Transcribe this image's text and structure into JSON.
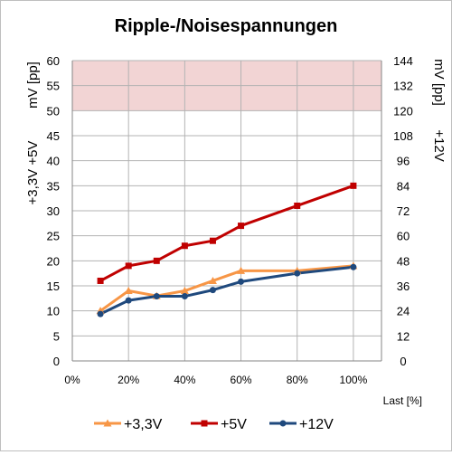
{
  "chart_data": {
    "type": "line",
    "title": "Ripple-/Noisespannungen",
    "xlabel": "Last [%]",
    "ylabel_left_line1": "mV [pp]",
    "ylabel_left_line2": "+3,3V +5V",
    "ylabel_right_line1": "mV [pp]",
    "ylabel_right_line2": "+12V",
    "x_ticks": [
      "0%",
      "20%",
      "40%",
      "60%",
      "80%",
      "100%"
    ],
    "x_tick_values": [
      0,
      20,
      40,
      60,
      80,
      100
    ],
    "xlim": [
      0,
      110
    ],
    "ylim_left": [
      0,
      60
    ],
    "yticks_left": [
      "0",
      "5",
      "10",
      "15",
      "20",
      "25",
      "30",
      "35",
      "40",
      "45",
      "50",
      "55",
      "60"
    ],
    "ylim_right": [
      0,
      144
    ],
    "yticks_right": [
      "0",
      "12",
      "24",
      "36",
      "48",
      "60",
      "72",
      "84",
      "96",
      "108",
      "120",
      "132",
      "144"
    ],
    "limit_band_left": [
      50,
      60
    ],
    "grid": true,
    "legend_position": "bottom",
    "x": [
      10,
      20,
      30,
      40,
      50,
      60,
      80,
      100
    ],
    "series": [
      {
        "name": "+3,3V",
        "axis": "left",
        "color": "#f79646",
        "marker": "triangle",
        "values": [
          10,
          14,
          13,
          14,
          16,
          18,
          18,
          19
        ]
      },
      {
        "name": "+5V",
        "axis": "left",
        "color": "#c00000",
        "marker": "square",
        "values": [
          16,
          19,
          20,
          23,
          24,
          27,
          31,
          35
        ]
      },
      {
        "name": "+12V",
        "axis": "right",
        "color": "#1f497d",
        "marker": "circle",
        "values": [
          22.5,
          29,
          31,
          31,
          34,
          38,
          42,
          45
        ]
      }
    ]
  }
}
